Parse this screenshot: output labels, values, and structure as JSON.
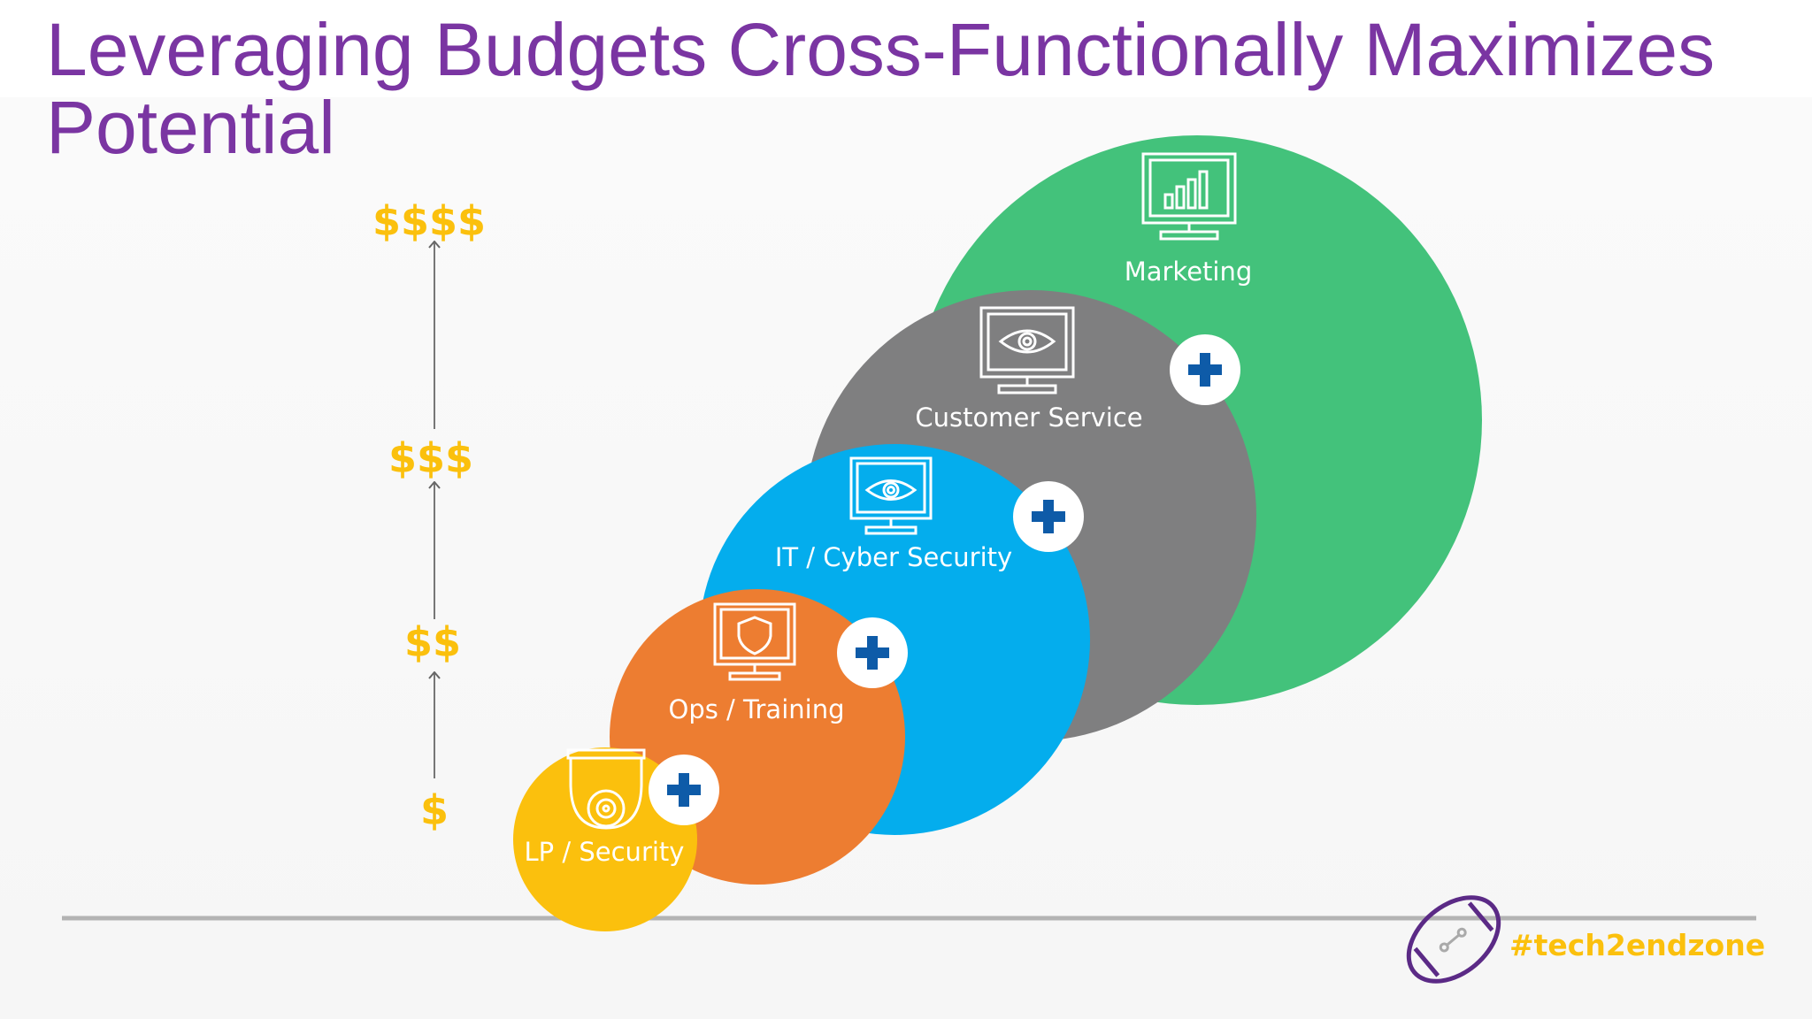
{
  "title": "Leveraging Budgets Cross-Functionally Maximizes Potential",
  "budget_scale": [
    "$$$$",
    "$$$",
    "$$",
    "$"
  ],
  "bubbles": [
    {
      "label": "Marketing",
      "color": "#43c27b",
      "icon": "analytics-monitor-icon"
    },
    {
      "label": "Customer Service",
      "color": "#7f7f80",
      "icon": "eye-monitor-icon"
    },
    {
      "label": "IT / Cyber Security",
      "color": "#04aded",
      "icon": "eye-monitor-icon"
    },
    {
      "label": "Ops / Training",
      "color": "#ed7d31",
      "icon": "shield-monitor-icon"
    },
    {
      "label": "LP / Security",
      "color": "#fbc00d",
      "icon": "security-camera-icon"
    }
  ],
  "plus_badge_color": "#0e5ba8",
  "brand": {
    "hashtag": "#tech2endzone",
    "logo_color": "#5b2a86",
    "text_color": "#fbc00d"
  }
}
